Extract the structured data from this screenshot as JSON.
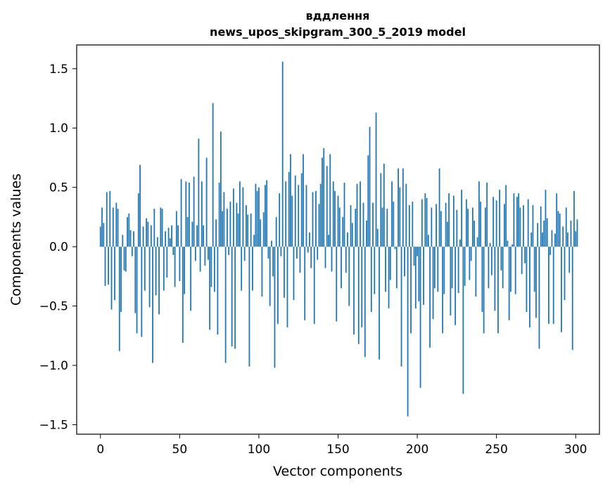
{
  "chart_data": {
    "type": "bar",
    "title": "вддлення",
    "subtitle": "news_upos_skipgram_300_5_2019 model",
    "xlabel": "Vector components",
    "ylabel": "Components values",
    "xlim": [
      -15,
      315
    ],
    "ylim": [
      -1.58,
      1.7
    ],
    "x_ticks": [
      0,
      50,
      100,
      150,
      200,
      250,
      300
    ],
    "x_tick_labels": [
      "0",
      "50",
      "100",
      "150",
      "200",
      "250",
      "300"
    ],
    "y_ticks": [
      -1.5,
      -1.0,
      -0.5,
      0.0,
      0.5,
      1.0,
      1.5
    ],
    "y_tick_labels": [
      "−1.5",
      "−1.0",
      "−0.5",
      "0.0",
      "0.5",
      "1.0",
      "1.5"
    ],
    "grid": false,
    "color": "#1f77b4",
    "values": [
      0.17,
      0.33,
      0.2,
      -0.33,
      0.46,
      -0.32,
      0.47,
      -0.53,
      0.33,
      -0.45,
      0.37,
      0.32,
      -0.88,
      -0.55,
      0.1,
      -0.2,
      -0.21,
      0.25,
      0.28,
      0.14,
      -0.08,
      0.13,
      -0.56,
      -0.73,
      0.45,
      0.69,
      -0.76,
      0.17,
      -0.37,
      0.24,
      0.21,
      -0.51,
      0.18,
      -0.98,
      0.32,
      -0.41,
      0.08,
      -0.57,
      0.33,
      0.32,
      -0.37,
      0.13,
      -0.26,
      0.16,
      0.07,
      0.18,
      -0.07,
      -0.34,
      0.3,
      0.18,
      -0.29,
      0.57,
      -0.81,
      -0.4,
      0.55,
      0.25,
      0.54,
      -0.54,
      0.21,
      0.59,
      -0.12,
      0.18,
      0.91,
      -0.21,
      0.55,
      0.18,
      -0.16,
      0.75,
      -0.11,
      -0.7,
      -0.34,
      1.21,
      -0.38,
      0.23,
      -0.74,
      0.54,
      0.97,
      0.3,
      0.46,
      -0.98,
      0.32,
      -0.07,
      0.38,
      -0.84,
      0.49,
      -0.86,
      0.37,
      0.28,
      0.55,
      -0.37,
      0.5,
      -0.12,
      0.35,
      0.27,
      -1.01,
      0.28,
      -0.37,
      0.1,
      0.53,
      0.47,
      0.5,
      0.23,
      -0.42,
      0.29,
      0.52,
      0.56,
      -0.1,
      -0.5,
      0.05,
      -0.25,
      -1.02,
      0.25,
      -0.65,
      0.45,
      -0.08,
      1.56,
      -0.43,
      0.55,
      -0.68,
      0.63,
      0.78,
      0.43,
      -0.45,
      0.6,
      -0.1,
      0.52,
      -0.22,
      0.62,
      0.78,
      -0.62,
      0.52,
      -0.05,
      0.12,
      -0.18,
      0.46,
      -0.65,
      0.47,
      -0.11,
      0.36,
      0.53,
      0.75,
      0.83,
      -0.18,
      0.68,
      0.1,
      0.78,
      -0.21,
      0.55,
      0.47,
      -0.63,
      0.43,
      0.33,
      -0.35,
      0.25,
      0.54,
      -0.22,
      0.12,
      -0.5,
      0.35,
      0.2,
      -0.74,
      0.32,
      0.53,
      -0.82,
      0.55,
      -0.68,
      0.37,
      -0.93,
      0.22,
      0.77,
      1.01,
      -0.55,
      0.37,
      -0.4,
      1.13,
      0.15,
      -0.95,
      0.62,
      0.33,
      0.7,
      -0.38,
      0.32,
      -0.52,
      -0.28,
      0.55,
      0.38,
      -0.02,
      -0.35,
      0.66,
      0.5,
      -1.01,
      0.66,
      -0.25,
      0.53,
      -1.43,
      0.35,
      -0.73,
      0.38,
      -0.16,
      -0.52,
      -0.08,
      -0.46,
      -1.19,
      0.4,
      -0.49,
      0.45,
      0.41,
      0.1,
      -0.85,
      0.33,
      -0.61,
      -0.35,
      0.36,
      -0.38,
      0.66,
      0.3,
      -0.73,
      -0.4,
      0.37,
      0.21,
      0.45,
      -0.58,
      -0.35,
      0.43,
      -0.66,
      0.31,
      -0.39,
      0.06,
      0.48,
      -1.24,
      -0.33,
      0.4,
      0.32,
      -0.28,
      -0.12,
      0.33,
      0.22,
      -0.42,
      0.08,
      0.55,
      0.38,
      -0.55,
      -0.73,
      0.33,
      0.54,
      -0.35,
      0.03,
      -0.24,
      0.42,
      -0.54,
      0.39,
      -0.73,
      0.48,
      -0.2,
      -0.35,
      0.36,
      0.52,
      0.05,
      -0.62,
      -0.38,
      0.02,
      0.45,
      -0.4,
      0.42,
      0.45,
      0.33,
      -0.23,
      0.35,
      -0.14,
      -0.55,
      0.4,
      -0.68,
      0.12,
      0.35,
      -0.38,
      -0.6,
      0.2,
      -0.86,
      0.34,
      0.12,
      0.22,
      0.48,
      0.24,
      -0.65,
      -0.07,
      0.14,
      -0.65,
      0.11,
      0.45,
      0.3,
      0.28,
      -0.72,
      0.17,
      -0.45,
      0.33,
      0.12,
      -0.22,
      0.22,
      -0.87,
      0.47,
      0.13,
      0.23
    ]
  }
}
